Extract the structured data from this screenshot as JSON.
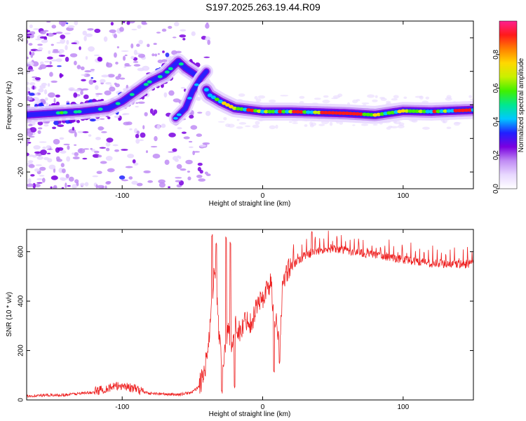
{
  "title": "S197.2025.263.19.44.R09",
  "chart_data": [
    {
      "type": "heatmap",
      "xlabel": "Height of straight line (km)",
      "ylabel": "Frequency (Hz)",
      "xlim": [
        -168,
        150
      ],
      "ylim": [
        -25,
        25
      ],
      "x_ticks": [
        -100,
        0,
        100
      ],
      "y_ticks": [
        -20,
        -10,
        0,
        10,
        20
      ],
      "colorbar": {
        "label": "Normalized spectral amplitude",
        "range": [
          0,
          1
        ],
        "ticks": [
          0.0,
          0.2,
          0.4,
          0.6,
          0.8
        ],
        "colors": [
          "#ffffff",
          "#e8d8ff",
          "#c08cf4",
          "#7a00e0",
          "#2020ff",
          "#00c8ff",
          "#00e890",
          "#40f000",
          "#c8f000",
          "#ffd800",
          "#ff8000",
          "#ff1a1a",
          "#ff2090"
        ]
      },
      "ridges": [
        {
          "name": "main ridge",
          "points": [
            [
              -168,
              -3
            ],
            [
              -150,
              -2.5
            ],
            [
              -130,
              -2
            ],
            [
              -110,
              -1
            ],
            [
              -100,
              1
            ],
            [
              -90,
              4
            ],
            [
              -80,
              7
            ],
            [
              -70,
              9
            ],
            [
              -60,
              13
            ],
            [
              -55,
              11
            ],
            [
              -48,
              9
            ],
            [
              -42,
              6
            ],
            [
              -38,
              3
            ],
            [
              -30,
              1
            ],
            [
              -20,
              -1
            ],
            [
              -10,
              -1.5
            ],
            [
              0,
              -2
            ],
            [
              20,
              -2
            ],
            [
              60,
              -2.5
            ],
            [
              80,
              -3
            ],
            [
              100,
              -1.8
            ],
            [
              120,
              -2
            ],
            [
              150,
              -1.5
            ]
          ]
        },
        {
          "name": "second branch",
          "points": [
            [
              -62,
              -4
            ],
            [
              -55,
              -1
            ],
            [
              -50,
              4
            ],
            [
              -44,
              8
            ],
            [
              -40,
              10
            ]
          ]
        }
      ]
    },
    {
      "type": "line",
      "xlabel": "Height of straight line (km)",
      "ylabel": "SNR (10 * v/v)",
      "xlim": [
        -168,
        150
      ],
      "ylim": [
        0,
        690
      ],
      "x_ticks": [
        -100,
        0,
        100
      ],
      "y_ticks": [
        0,
        200,
        400,
        600
      ],
      "line_color": "#ee2222",
      "baseline_points": [
        [
          -168,
          15
        ],
        [
          -140,
          20
        ],
        [
          -120,
          30
        ],
        [
          -110,
          45
        ],
        [
          -100,
          55
        ],
        [
          -90,
          40
        ],
        [
          -80,
          25
        ],
        [
          -60,
          20
        ],
        [
          -50,
          30
        ],
        [
          -44,
          60
        ],
        [
          -40,
          150
        ],
        [
          -37,
          300
        ],
        [
          -34,
          550
        ],
        [
          -31,
          250
        ],
        [
          -28,
          120
        ],
        [
          -25,
          280
        ],
        [
          -22,
          220
        ],
        [
          -19,
          300
        ],
        [
          -16,
          260
        ],
        [
          -12,
          320
        ],
        [
          -8,
          300
        ],
        [
          -4,
          380
        ],
        [
          0,
          400
        ],
        [
          3,
          440
        ],
        [
          6,
          470
        ],
        [
          8,
          300
        ],
        [
          10,
          330
        ],
        [
          12,
          170
        ],
        [
          14,
          440
        ],
        [
          18,
          520
        ],
        [
          25,
          560
        ],
        [
          30,
          580
        ],
        [
          40,
          600
        ],
        [
          50,
          610
        ],
        [
          60,
          600
        ],
        [
          80,
          585
        ],
        [
          100,
          565
        ],
        [
          120,
          550
        ],
        [
          140,
          545
        ],
        [
          150,
          548
        ]
      ],
      "spikes": [
        [
          -36,
          675
        ],
        [
          -33,
          640
        ],
        [
          -29,
          40
        ],
        [
          -26,
          660
        ],
        [
          -23,
          640
        ],
        [
          -20,
          60
        ],
        [
          8,
          120
        ],
        [
          12,
          160
        ],
        [
          35,
          685
        ]
      ]
    }
  ]
}
